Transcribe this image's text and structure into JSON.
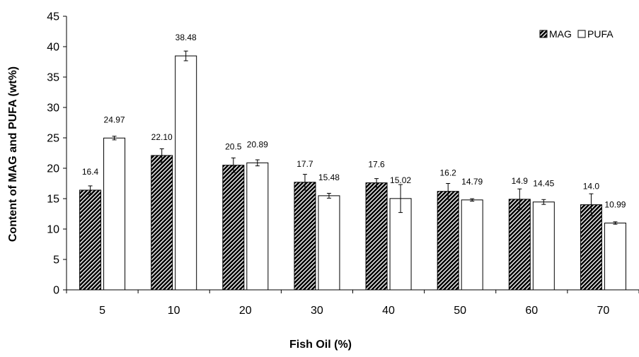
{
  "chart_data": {
    "type": "bar",
    "title": "",
    "xlabel": "Fish Oil (%)",
    "ylabel": "Content of MAG and PUFA (wt%)",
    "categories": [
      "5",
      "10",
      "20",
      "30",
      "40",
      "50",
      "60",
      "70"
    ],
    "ylim": [
      0,
      45
    ],
    "yticks": [
      0,
      5,
      10,
      15,
      20,
      25,
      30,
      35,
      40,
      45
    ],
    "grid": false,
    "legend_position": "top-right",
    "series": [
      {
        "name": "MAG",
        "pattern": "diagonal-hatch",
        "color": "#000000",
        "values": [
          16.4,
          22.1,
          20.5,
          17.7,
          17.6,
          16.2,
          14.9,
          14.0
        ],
        "errors": [
          0.7,
          1.1,
          1.2,
          1.3,
          0.7,
          1.3,
          1.7,
          1.8
        ],
        "labels": [
          "16.4",
          "22.10",
          "20.5",
          "17.7",
          "17.6",
          "16.2",
          "14.9",
          "14.0"
        ]
      },
      {
        "name": "PUFA",
        "pattern": "solid",
        "color": "#ffffff",
        "values": [
          24.97,
          38.48,
          20.89,
          15.48,
          15.02,
          14.79,
          14.45,
          10.99
        ],
        "errors": [
          0.3,
          0.8,
          0.5,
          0.4,
          2.3,
          0.2,
          0.4,
          0.2
        ],
        "labels": [
          "24.97",
          "38.48",
          "20.89",
          "15.48",
          "15.02",
          "14.79",
          "14.45",
          "10.99"
        ]
      }
    ]
  }
}
